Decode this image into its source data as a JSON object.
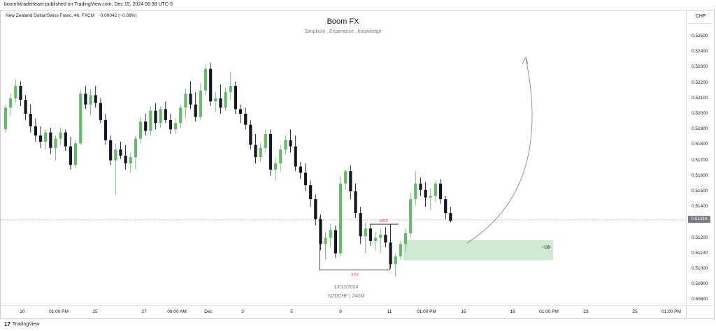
{
  "header": {
    "publisher_line": "boomfxtraderteam published on TradingView.com, Dec 15, 2024 06:38 UTC-5",
    "symbol_line": "New Zealand Dollar/Swiss Franc, 4h, FXCM",
    "change_text": "−0.00042 (−0.08%)"
  },
  "watermark": {
    "title": "Boom FX",
    "subtitle": "Simplicity , Experience , knowledge"
  },
  "price_scale": {
    "currency": "CHF",
    "current_price": "0.51316",
    "ticks": [
      "0.52500",
      "0.52400",
      "0.52300",
      "0.52200",
      "0.52100",
      "0.52000",
      "0.51900",
      "0.51800",
      "0.51700",
      "0.51600",
      "0.51500",
      "0.51400",
      "0.51200",
      "0.51100",
      "0.51000",
      "0.50900",
      "0.50800"
    ]
  },
  "time_scale": {
    "ticks": [
      "20",
      "01:00 PM",
      "25",
      "27",
      "09:00 AM",
      "Dec",
      "3",
      "5",
      "9",
      "11",
      "01:00 PM",
      "16",
      "18",
      "01:00 PM",
      "23",
      "25",
      "01:00 PM"
    ]
  },
  "annotations": {
    "mss": "MSS",
    "xxx": "XXX",
    "ob": "+OB",
    "date_stamp": "13/12/2024",
    "symbol_stamp": "NZDCHF | 240M"
  },
  "footer": {
    "brand": "TradingView",
    "brand_mark": "17"
  },
  "colors": {
    "up": "#66bb6a",
    "down": "#131722",
    "ob_zone": "#c8e6c9",
    "annotation_red": "#e53935"
  },
  "chart_data": {
    "type": "candlestick",
    "symbol": "NZDCHF",
    "timeframe": "4h",
    "ylim": [
      0.5075,
      0.526
    ],
    "current_price": 0.51316,
    "ohlc": [
      [
        0.519,
        0.5206,
        0.5188,
        0.5204
      ],
      [
        0.5204,
        0.5213,
        0.5199,
        0.521
      ],
      [
        0.521,
        0.5222,
        0.5207,
        0.5218
      ],
      [
        0.5218,
        0.5221,
        0.5205,
        0.5209
      ],
      [
        0.5209,
        0.5212,
        0.5196,
        0.52
      ],
      [
        0.52,
        0.5206,
        0.5188,
        0.5192
      ],
      [
        0.5192,
        0.5197,
        0.5182,
        0.5186
      ],
      [
        0.5186,
        0.5192,
        0.5178,
        0.5182
      ],
      [
        0.5182,
        0.519,
        0.5177,
        0.5188
      ],
      [
        0.5188,
        0.5191,
        0.5174,
        0.5178
      ],
      [
        0.5178,
        0.5186,
        0.517,
        0.5184
      ],
      [
        0.5184,
        0.5191,
        0.518,
        0.5188
      ],
      [
        0.5188,
        0.519,
        0.5176,
        0.5179
      ],
      [
        0.5179,
        0.5185,
        0.5164,
        0.5167
      ],
      [
        0.5167,
        0.5183,
        0.5165,
        0.5181
      ],
      [
        0.5181,
        0.5216,
        0.518,
        0.5213
      ],
      [
        0.5213,
        0.5218,
        0.5203,
        0.5206
      ],
      [
        0.5206,
        0.5216,
        0.5199,
        0.5212
      ],
      [
        0.5212,
        0.5218,
        0.5204,
        0.5207
      ],
      [
        0.5207,
        0.521,
        0.5194,
        0.5196
      ],
      [
        0.5196,
        0.52,
        0.518,
        0.5183
      ],
      [
        0.5183,
        0.5186,
        0.5167,
        0.517
      ],
      [
        0.517,
        0.5181,
        0.5148,
        0.5177
      ],
      [
        0.5177,
        0.5182,
        0.5171,
        0.5173
      ],
      [
        0.5173,
        0.518,
        0.5164,
        0.5168
      ],
      [
        0.5168,
        0.5175,
        0.5162,
        0.5172
      ],
      [
        0.5172,
        0.5186,
        0.5164,
        0.5184
      ],
      [
        0.5184,
        0.5198,
        0.5181,
        0.5195
      ],
      [
        0.5195,
        0.52,
        0.5186,
        0.5189
      ],
      [
        0.5189,
        0.5205,
        0.5186,
        0.5202
      ],
      [
        0.5202,
        0.5207,
        0.519,
        0.5194
      ],
      [
        0.5194,
        0.5205,
        0.5191,
        0.5203
      ],
      [
        0.5203,
        0.5208,
        0.5194,
        0.5196
      ],
      [
        0.5196,
        0.52,
        0.5187,
        0.519
      ],
      [
        0.519,
        0.5197,
        0.5187,
        0.5194
      ],
      [
        0.5194,
        0.5206,
        0.5191,
        0.5204
      ],
      [
        0.5204,
        0.5216,
        0.5197,
        0.5213
      ],
      [
        0.5213,
        0.5221,
        0.5203,
        0.5206
      ],
      [
        0.5206,
        0.5214,
        0.5195,
        0.5198
      ],
      [
        0.5198,
        0.522,
        0.5196,
        0.5215
      ],
      [
        0.5215,
        0.5232,
        0.5212,
        0.5229
      ],
      [
        0.5229,
        0.5233,
        0.5205,
        0.5208
      ],
      [
        0.5208,
        0.5214,
        0.5201,
        0.521
      ],
      [
        0.521,
        0.5219,
        0.52,
        0.5204
      ],
      [
        0.5204,
        0.5217,
        0.5202,
        0.5214
      ],
      [
        0.5214,
        0.5227,
        0.5209,
        0.5218
      ],
      [
        0.5218,
        0.5221,
        0.52,
        0.5203
      ],
      [
        0.5203,
        0.5206,
        0.5194,
        0.52
      ],
      [
        0.52,
        0.5204,
        0.519,
        0.5193
      ],
      [
        0.5193,
        0.5196,
        0.5177,
        0.518
      ],
      [
        0.518,
        0.5187,
        0.5168,
        0.5172
      ],
      [
        0.5172,
        0.5181,
        0.5169,
        0.5178
      ],
      [
        0.5178,
        0.519,
        0.5175,
        0.5187
      ],
      [
        0.5187,
        0.519,
        0.516,
        0.5164
      ],
      [
        0.5164,
        0.5172,
        0.5157,
        0.5168
      ],
      [
        0.5168,
        0.518,
        0.5163,
        0.5177
      ],
      [
        0.5177,
        0.5186,
        0.5174,
        0.5183
      ],
      [
        0.5183,
        0.519,
        0.5175,
        0.5179
      ],
      [
        0.5179,
        0.5186,
        0.5163,
        0.5166
      ],
      [
        0.5166,
        0.5169,
        0.5158,
        0.5162
      ],
      [
        0.5162,
        0.5168,
        0.515,
        0.5154
      ],
      [
        0.5154,
        0.5157,
        0.514,
        0.5145
      ],
      [
        0.5145,
        0.5148,
        0.5128,
        0.5132
      ],
      [
        0.5132,
        0.5135,
        0.5112,
        0.5116
      ],
      [
        0.5116,
        0.5124,
        0.5106,
        0.512
      ],
      [
        0.512,
        0.5129,
        0.5114,
        0.5125
      ],
      [
        0.5125,
        0.5128,
        0.5107,
        0.511
      ],
      [
        0.511,
        0.516,
        0.5108,
        0.5155
      ],
      [
        0.5155,
        0.5164,
        0.5151,
        0.5163
      ],
      [
        0.5163,
        0.5167,
        0.5145,
        0.515
      ],
      [
        0.515,
        0.5155,
        0.5133,
        0.5136
      ],
      [
        0.5136,
        0.514,
        0.5116,
        0.5121
      ],
      [
        0.5121,
        0.513,
        0.511,
        0.5126
      ],
      [
        0.5126,
        0.5129,
        0.5115,
        0.5118
      ],
      [
        0.5118,
        0.5124,
        0.5112,
        0.512
      ],
      [
        0.512,
        0.5126,
        0.511,
        0.5122
      ],
      [
        0.5122,
        0.5127,
        0.5114,
        0.5117
      ],
      [
        0.5117,
        0.5129,
        0.51,
        0.5103
      ],
      [
        0.5103,
        0.511,
        0.5095,
        0.5108
      ],
      [
        0.5108,
        0.5118,
        0.5106,
        0.5116
      ],
      [
        0.5116,
        0.5126,
        0.5111,
        0.5123
      ],
      [
        0.5123,
        0.5149,
        0.512,
        0.5145
      ],
      [
        0.5145,
        0.5163,
        0.5141,
        0.5155
      ],
      [
        0.5155,
        0.5159,
        0.5147,
        0.5151
      ],
      [
        0.5151,
        0.5156,
        0.514,
        0.5146
      ],
      [
        0.5146,
        0.5152,
        0.5138,
        0.5147
      ],
      [
        0.5147,
        0.5157,
        0.5143,
        0.5155
      ],
      [
        0.5155,
        0.5158,
        0.5142,
        0.5145
      ],
      [
        0.5145,
        0.5147,
        0.5132,
        0.5136
      ],
      [
        0.5136,
        0.514,
        0.513,
        0.5131
      ]
    ]
  }
}
